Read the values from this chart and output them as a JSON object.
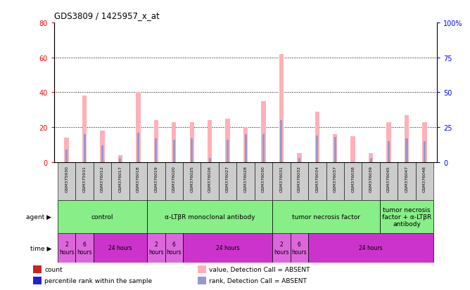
{
  "title": "GDS3809 / 1425957_x_at",
  "samples": [
    "GSM375930",
    "GSM375931",
    "GSM376012",
    "GSM376017",
    "GSM376018",
    "GSM376019",
    "GSM376020",
    "GSM376025",
    "GSM376026",
    "GSM376027",
    "GSM376028",
    "GSM376030",
    "GSM376031",
    "GSM376032",
    "GSM376034",
    "GSM376037",
    "GSM376038",
    "GSM376039",
    "GSM376045",
    "GSM376047",
    "GSM376048"
  ],
  "count_values": [
    14,
    38,
    18,
    4,
    40,
    24,
    23,
    23,
    24,
    25,
    20,
    35,
    62,
    5,
    29,
    16,
    15,
    5,
    23,
    27,
    23
  ],
  "rank_values": [
    9,
    20,
    12,
    3,
    21,
    17,
    16,
    17,
    3,
    16,
    20,
    20,
    30,
    3,
    19,
    18,
    0,
    3,
    15,
    17,
    15
  ],
  "ylim_left": [
    0,
    80
  ],
  "ylim_right": [
    0,
    100
  ],
  "yticks_left": [
    0,
    20,
    40,
    60,
    80
  ],
  "yticks_right": [
    0,
    25,
    50,
    75,
    100
  ],
  "ytick_labels_right": [
    "0",
    "25",
    "50",
    "75",
    "100%"
  ],
  "color_count_absent": "#ffb0b8",
  "color_rank_absent": "#9999cc",
  "agent_groups": [
    {
      "label": "control",
      "start": 0,
      "end": 5
    },
    {
      "label": "α-LTβR monoclonal antibody",
      "start": 5,
      "end": 12
    },
    {
      "label": "tumor necrosis factor",
      "start": 12,
      "end": 18
    },
    {
      "label": "tumor necrosis\nfactor + α-LTβR\nantibody",
      "start": 18,
      "end": 21
    }
  ],
  "time_groups": [
    {
      "label": "2\nhours",
      "start": 0,
      "end": 1,
      "wide": false
    },
    {
      "label": "6\nhours",
      "start": 1,
      "end": 2,
      "wide": false
    },
    {
      "label": "24 hours",
      "start": 2,
      "end": 5,
      "wide": true
    },
    {
      "label": "2\nhours",
      "start": 5,
      "end": 6,
      "wide": false
    },
    {
      "label": "6\nhours",
      "start": 6,
      "end": 7,
      "wide": false
    },
    {
      "label": "24 hours",
      "start": 7,
      "end": 12,
      "wide": true
    },
    {
      "label": "2\nhours",
      "start": 12,
      "end": 13,
      "wide": false
    },
    {
      "label": "6\nhours",
      "start": 13,
      "end": 14,
      "wide": false
    },
    {
      "label": "24 hours",
      "start": 14,
      "end": 21,
      "wide": true
    }
  ],
  "color_agent": "#88ee88",
  "color_time_narrow": "#dd66dd",
  "color_time_wide": "#cc33cc",
  "legend_items": [
    {
      "label": "count",
      "color": "#cc2222"
    },
    {
      "label": "percentile rank within the sample",
      "color": "#2222cc"
    },
    {
      "label": "value, Detection Call = ABSENT",
      "color": "#ffb0b8"
    },
    {
      "label": "rank, Detection Call = ABSENT",
      "color": "#9999cc"
    }
  ]
}
